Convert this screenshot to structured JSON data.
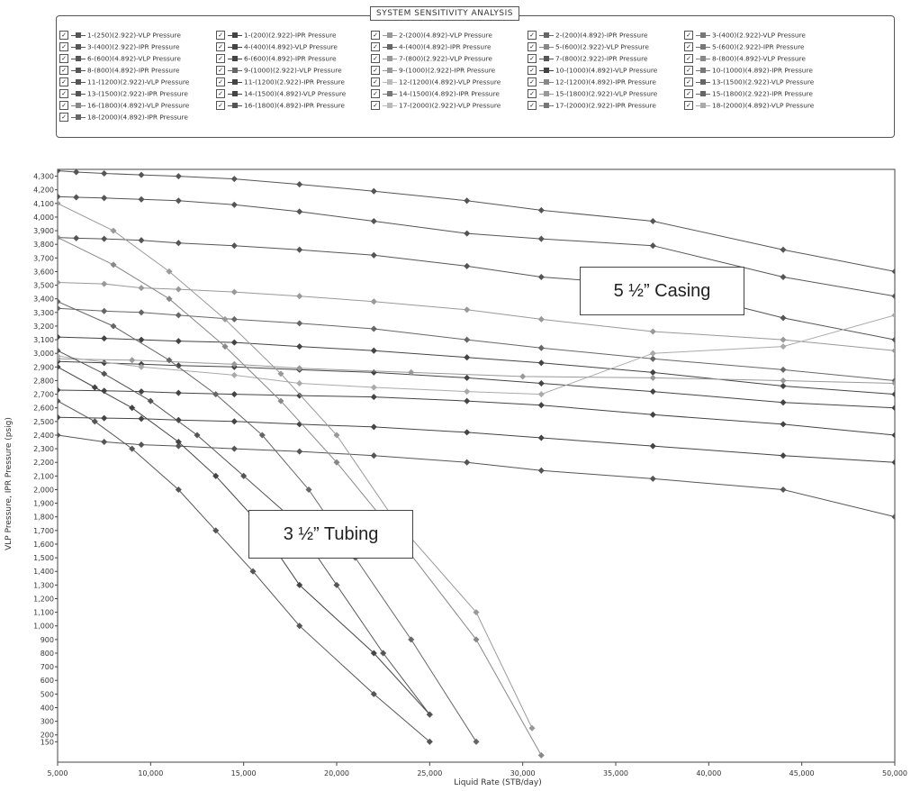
{
  "legend": {
    "title": "SYSTEM SENSITIVITY ANALYSIS",
    "items": [
      {
        "label": "1-(250)(2.922)-VLP Pressure",
        "color": "#555555"
      },
      {
        "label": "1-(200)(2.922)-IPR Pressure",
        "color": "#444444"
      },
      {
        "label": "2-(200)(4.892)-VLP Pressure",
        "color": "#999999"
      },
      {
        "label": "2-(200)(4.892)-IPR Pressure",
        "color": "#666666"
      },
      {
        "label": "3-(400)(2.922)-VLP Pressure",
        "color": "#777777"
      },
      {
        "label": "3-(400)(2.922)-IPR Pressure",
        "color": "#555555"
      },
      {
        "label": "4-(400)(4.892)-VLP Pressure",
        "color": "#444444"
      },
      {
        "label": "4-(400)(4.892)-IPR Pressure",
        "color": "#666666"
      },
      {
        "label": "5-(600)(2.922)-VLP Pressure",
        "color": "#888888"
      },
      {
        "label": "5-(600)(2.922)-IPR Pressure",
        "color": "#777777"
      },
      {
        "label": "6-(600)(4.892)-VLP Pressure",
        "color": "#555555"
      },
      {
        "label": "6-(600)(4.892)-IPR Pressure",
        "color": "#444444"
      },
      {
        "label": "7-(800)(2.922)-VLP Pressure",
        "color": "#999999"
      },
      {
        "label": "7-(800)(2.922)-IPR Pressure",
        "color": "#555555"
      },
      {
        "label": "8-(800)(4.892)-VLP Pressure",
        "color": "#888888"
      },
      {
        "label": "8-(800)(4.892)-IPR Pressure",
        "color": "#555555"
      },
      {
        "label": "9-(1000)(2.922)-VLP Pressure",
        "color": "#666666"
      },
      {
        "label": "9-(1000)(2.922)-IPR Pressure",
        "color": "#999999"
      },
      {
        "label": "10-(1000)(4.892)-VLP Pressure",
        "color": "#444444"
      },
      {
        "label": "10-(1000)(4.892)-IPR Pressure",
        "color": "#777777"
      },
      {
        "label": "11-(1200)(2.922)-VLP Pressure",
        "color": "#555555"
      },
      {
        "label": "11-(1200)(2.922)-IPR Pressure",
        "color": "#444444"
      },
      {
        "label": "12-(1200)(4.892)-VLP Pressure",
        "color": "#bbbbbb"
      },
      {
        "label": "12-(1200)(4.892)-IPR Pressure",
        "color": "#888888"
      },
      {
        "label": "13-(1500)(2.922)-VLP Pressure",
        "color": "#666666"
      },
      {
        "label": "13-(1500)(2.922)-IPR Pressure",
        "color": "#555555"
      },
      {
        "label": "14-(1500)(4.892)-VLP Pressure",
        "color": "#444444"
      },
      {
        "label": "14-(1500)(4.892)-IPR Pressure",
        "color": "#777777"
      },
      {
        "label": "15-(1800)(2.922)-VLP Pressure",
        "color": "#999999"
      },
      {
        "label": "15-(1800)(2.922)-IPR Pressure",
        "color": "#666666"
      },
      {
        "label": "16-(1800)(4.892)-VLP Pressure",
        "color": "#888888"
      },
      {
        "label": "16-(1800)(4.892)-IPR Pressure",
        "color": "#555555"
      },
      {
        "label": "17-(2000)(2.922)-VLP Pressure",
        "color": "#bbbbbb"
      },
      {
        "label": "17-(2000)(2.922)-IPR Pressure",
        "color": "#777777"
      },
      {
        "label": "18-(2000)(4.892)-VLP Pressure",
        "color": "#aaaaaa"
      },
      {
        "label": "18-(2000)(4.892)-IPR Pressure",
        "color": "#666666"
      }
    ]
  },
  "annotations": {
    "casing": "5 ½” Casing",
    "tubing": "3 ½” Tubing"
  },
  "chart_data": {
    "type": "line",
    "xlabel": "Liquid Rate  (STB/day)",
    "ylabel": "VLP Pressure, IPR Pressure  (psig)",
    "xlim": [
      5000,
      50000
    ],
    "ylim": [
      0,
      4350
    ],
    "x_ticks": [
      5000,
      10000,
      15000,
      20000,
      25000,
      30000,
      35000,
      40000,
      45000,
      50000
    ],
    "x_tick_labels": [
      "5,000",
      "10,000",
      "15,000",
      "20,000",
      "25,000",
      "30,000",
      "35,000",
      "40,000",
      "45,000",
      "50,000"
    ],
    "y_ticks": [
      150,
      200,
      300,
      400,
      500,
      600,
      700,
      800,
      900,
      1000,
      1100,
      1200,
      1300,
      1400,
      1500,
      1600,
      1700,
      1800,
      1900,
      2000,
      2100,
      2200,
      2300,
      2400,
      2500,
      2600,
      2700,
      2800,
      2900,
      3000,
      3100,
      3200,
      3300,
      3400,
      3500,
      3600,
      3700,
      3800,
      3900,
      4000,
      4100,
      4200,
      4300
    ],
    "y_tick_labels": [
      "150",
      "200",
      "300",
      "400",
      "500",
      "600",
      "700",
      "800",
      "900",
      "1,000",
      "1,100",
      "1,200",
      "1,300",
      "1,400",
      "1,500",
      "1,600",
      "1,700",
      "1,800",
      "1,900",
      "2,000",
      "2,100",
      "2,200",
      "2,300",
      "2,400",
      "2,500",
      "2,600",
      "2,700",
      "2,800",
      "2,900",
      "3,000",
      "3,100",
      "3,200",
      "3,300",
      "3,400",
      "3,500",
      "3,600",
      "3,700",
      "3,800",
      "3,900",
      "4,000",
      "4,100",
      "4,200",
      "4,300"
    ],
    "grid": false,
    "legend_position": "top",
    "series": [
      {
        "color": "#555555",
        "x": [
          5000,
          6000,
          7500,
          9500,
          11500,
          14500,
          18000,
          22000,
          27000,
          31000,
          37000,
          44000,
          50000
        ],
        "y": [
          4340,
          4330,
          4320,
          4310,
          4300,
          4280,
          4240,
          4190,
          4120,
          4050,
          3970,
          3760,
          3600
        ]
      },
      {
        "color": "#555555",
        "x": [
          5000,
          6000,
          7500,
          9500,
          11500,
          14500,
          18000,
          22000,
          27000,
          31000,
          37000,
          44000,
          50000
        ],
        "y": [
          4150,
          4145,
          4140,
          4130,
          4120,
          4090,
          4040,
          3970,
          3880,
          3840,
          3790,
          3560,
          3420
        ]
      },
      {
        "color": "#555555",
        "x": [
          5000,
          6000,
          7500,
          9500,
          11500,
          14500,
          18000,
          22000,
          27000,
          31000,
          37000,
          44000,
          50000
        ],
        "y": [
          3850,
          3845,
          3840,
          3830,
          3810,
          3790,
          3760,
          3720,
          3640,
          3560,
          3500,
          3260,
          3100
        ]
      },
      {
        "color": "#999999",
        "x": [
          5000,
          7500,
          9500,
          11500,
          14500,
          18000,
          22000,
          27000,
          31000,
          37000,
          44000,
          50000
        ],
        "y": [
          3520,
          3510,
          3480,
          3470,
          3450,
          3420,
          3380,
          3320,
          3250,
          3160,
          3100,
          3020
        ]
      },
      {
        "color": "#666666",
        "x": [
          5000,
          7500,
          9500,
          11500,
          14500,
          18000,
          22000,
          27000,
          31000,
          37000,
          44000,
          50000
        ],
        "y": [
          3330,
          3310,
          3300,
          3280,
          3250,
          3220,
          3180,
          3100,
          3040,
          2960,
          2880,
          2800
        ]
      },
      {
        "color": "#444444",
        "x": [
          5000,
          7500,
          9500,
          11500,
          14500,
          18000,
          22000,
          27000,
          31000,
          37000,
          44000,
          50000
        ],
        "y": [
          3120,
          3110,
          3100,
          3090,
          3080,
          3050,
          3020,
          2970,
          2930,
          2860,
          2760,
          2700
        ]
      },
      {
        "color": "#444444",
        "x": [
          5000,
          7500,
          9500,
          11500,
          14500,
          18000,
          22000,
          27000,
          31000,
          37000,
          44000,
          50000
        ],
        "y": [
          2940,
          2930,
          2920,
          2910,
          2900,
          2880,
          2860,
          2820,
          2780,
          2720,
          2640,
          2600
        ]
      },
      {
        "color": "#444444",
        "x": [
          5000,
          7500,
          9500,
          11500,
          14500,
          18000,
          22000,
          27000,
          31000,
          37000,
          44000,
          50000
        ],
        "y": [
          2730,
          2725,
          2720,
          2710,
          2700,
          2690,
          2680,
          2650,
          2620,
          2550,
          2480,
          2400
        ]
      },
      {
        "color": "#444444",
        "x": [
          5000,
          7500,
          9500,
          11500,
          14500,
          18000,
          22000,
          27000,
          31000,
          37000,
          44000,
          50000
        ],
        "y": [
          2530,
          2525,
          2520,
          2510,
          2500,
          2480,
          2460,
          2420,
          2380,
          2320,
          2250,
          2200
        ]
      },
      {
        "color": "#999999",
        "x": [
          5000,
          9000,
          14500,
          18000,
          24000,
          30000,
          37000,
          44000,
          50000
        ],
        "y": [
          2960,
          2950,
          2920,
          2890,
          2860,
          2830,
          2820,
          2800,
          2780
        ]
      },
      {
        "color": "#555555",
        "x": [
          5000,
          7500,
          9500,
          11500,
          14500,
          18000,
          22000,
          27000,
          31000,
          37000,
          44000,
          50000
        ],
        "y": [
          2400,
          2350,
          2330,
          2320,
          2300,
          2280,
          2250,
          2200,
          2140,
          2080,
          2000,
          1800
        ]
      },
      {
        "color": "#aaaaaa",
        "x": [
          5000,
          9500,
          14500,
          18000,
          22000,
          27000,
          31000,
          37000,
          44000,
          50000
        ],
        "y": [
          2980,
          2900,
          2840,
          2780,
          2750,
          2720,
          2700,
          3000,
          3050,
          3280
        ]
      },
      {
        "color": "#555555",
        "x": [
          5000,
          7000,
          9000,
          11500,
          13500,
          15500,
          18000,
          22000,
          25000
        ],
        "y": [
          2650,
          2500,
          2300,
          2000,
          1700,
          1400,
          1000,
          500,
          150
        ]
      },
      {
        "color": "#444444",
        "x": [
          5000,
          7000,
          9000,
          11500,
          13500,
          15500,
          18000,
          22000,
          25000
        ],
        "y": [
          2900,
          2750,
          2600,
          2350,
          2100,
          1800,
          1300,
          800,
          350
        ]
      },
      {
        "color": "#555555",
        "x": [
          5000,
          7500,
          10000,
          12500,
          15000,
          17500,
          20000,
          22500,
          25000
        ],
        "y": [
          3020,
          2850,
          2650,
          2400,
          2100,
          1800,
          1300,
          800,
          350
        ]
      },
      {
        "color": "#666666",
        "x": [
          5000,
          8000,
          11000,
          13500,
          16000,
          18500,
          21000,
          24000,
          27500
        ],
        "y": [
          3380,
          3200,
          2950,
          2700,
          2400,
          2000,
          1500,
          900,
          150
        ]
      },
      {
        "color": "#888888",
        "x": [
          5000,
          8000,
          11000,
          14000,
          17000,
          20000,
          23000,
          27500,
          31000
        ],
        "y": [
          3850,
          3650,
          3400,
          3050,
          2650,
          2200,
          1700,
          900,
          50
        ]
      },
      {
        "color": "#999999",
        "x": [
          5000,
          8000,
          11000,
          14000,
          17000,
          20000,
          23000,
          27500,
          30500
        ],
        "y": [
          4100,
          3900,
          3600,
          3250,
          2850,
          2400,
          1800,
          1100,
          250
        ]
      }
    ]
  }
}
